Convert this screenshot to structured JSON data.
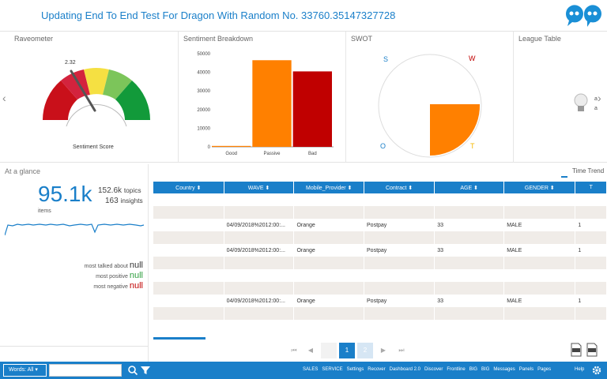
{
  "header": {
    "title": "Updating End To End Test For Dragon With Random No. 33760.35147327728",
    "logo_icon": "quote-bubbles-logo"
  },
  "panels": {
    "raveometer": {
      "title": "Raveometer",
      "value_label": "2.32",
      "caption": "Sentiment Score",
      "value": 2.32
    },
    "sentiment_breakdown": {
      "title": "Sentiment Breakdown"
    },
    "swot": {
      "title": "SWOT",
      "letters": [
        "S",
        "W",
        "O",
        "T"
      ]
    },
    "league_table": {
      "title": "League Table",
      "icon": "lightbulb-icon",
      "fragment_a": "a",
      "fragment_b": "a"
    }
  },
  "chart_data": {
    "type": "bar",
    "title": "Sentiment Breakdown",
    "categories": [
      "Good",
      "Passive",
      "Bad"
    ],
    "values": [
      500,
      46500,
      40500
    ],
    "colors": [
      "#ff8000",
      "#ff8000",
      "#c00000"
    ],
    "ylim": [
      0,
      50000
    ],
    "yticks": [
      "50000",
      "40000",
      "30000",
      "20000",
      "10000",
      "0"
    ],
    "xlabel": "",
    "ylabel": ""
  },
  "glance": {
    "title": "At a glance",
    "total": "95.1k",
    "total_label": "items",
    "topics_value": "152.6k",
    "topics_label": "topics",
    "insights_value": "163",
    "insights_label": "insights",
    "most_talked": "most talked about",
    "most_positive": "most positive",
    "most_negative": "most negative",
    "null_value": "null"
  },
  "table": {
    "time_trend": "Time Trend",
    "columns": [
      "Country",
      "WAVE",
      "Mobile_Provider",
      "Contract",
      "AGE",
      "GENDER",
      "T"
    ],
    "rows": [
      [
        "",
        "",
        "",
        "",
        "",
        "",
        ""
      ],
      [
        "",
        "",
        "",
        "",
        "",
        "",
        ""
      ],
      [
        "",
        "04/09/2018%2012:00:...",
        "Orange",
        "Postpay",
        "33",
        "MALE",
        "1"
      ],
      [
        "",
        "",
        "",
        "",
        "",
        "",
        ""
      ],
      [
        "",
        "04/09/2018%2012:00:...",
        "Orange",
        "Postpay",
        "33",
        "MALE",
        "1"
      ],
      [
        "",
        "",
        "",
        "",
        "",
        "",
        ""
      ],
      [
        "",
        "",
        "",
        "",
        "",
        "",
        ""
      ],
      [
        "",
        "",
        "",
        "",
        "",
        "",
        ""
      ],
      [
        "",
        "04/09/2018%2012:00:...",
        "Orange",
        "Postpay",
        "33",
        "MALE",
        "1"
      ],
      [
        "",
        "",
        "",
        "",
        "",
        "",
        ""
      ]
    ],
    "pager": {
      "first": "⏮",
      "prev": "◀",
      "current": "1",
      "next_page": "2",
      "next": "▶",
      "last": "⏭"
    },
    "downloads": [
      "XLS",
      "XLS"
    ]
  },
  "bottombar": {
    "words_label": "Words: All",
    "search_placeholder": "",
    "links": [
      "SALES",
      "SERVICE",
      "Settings",
      "Recover",
      "Dashboard 2.0",
      "Discover",
      "Frontline",
      "BIG",
      "BIG",
      "Messages",
      "Panels",
      "Pages"
    ],
    "help": "Help"
  }
}
